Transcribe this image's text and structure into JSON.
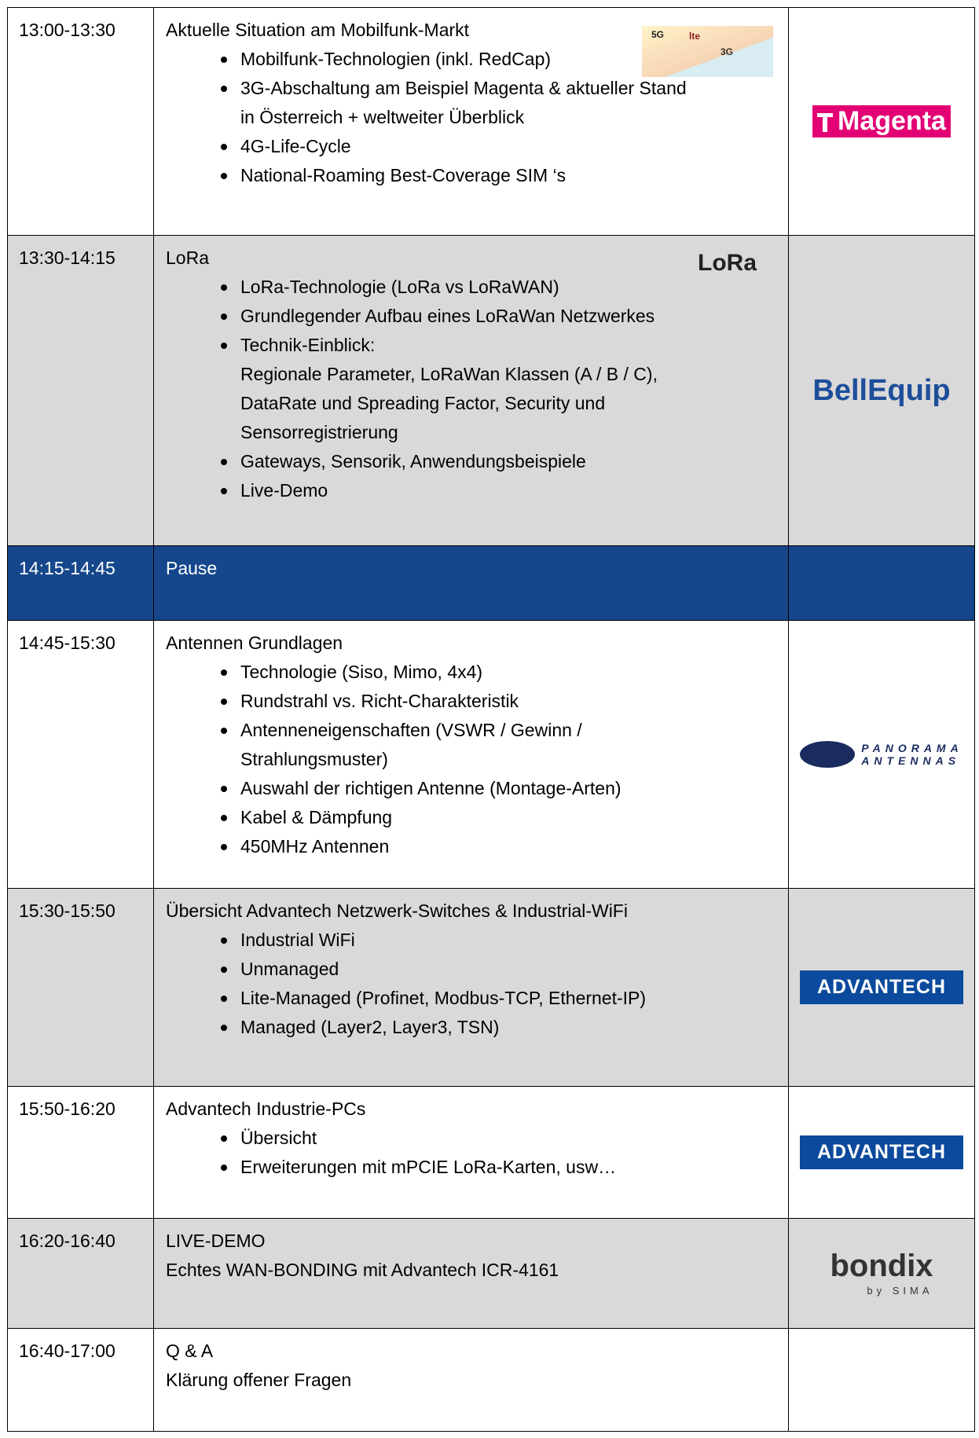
{
  "table": {
    "rows": [
      {
        "time": "13:00-13:30",
        "title": "Aktuelle Situation am Mobilfunk-Markt",
        "items": [
          [
            "Mobilfunk-Technologien (inkl. RedCap)"
          ],
          [
            "3G-Abschaltung am Beispiel Magenta & aktueller Stand",
            "in Österreich + weltweiter Überblick"
          ],
          [
            "4G-Life-Cycle"
          ],
          [
            "National-Roaming Best-Coverage SIM ‘s"
          ]
        ],
        "image": [
          "5G",
          "lte",
          "3G"
        ],
        "logo": [
          "Magenta"
        ]
      },
      {
        "time": "13:30-14:15",
        "title": "LoRa",
        "items": [
          [
            "LoRa-Technologie (LoRa vs LoRaWAN)"
          ],
          [
            "Grundlegender Aufbau eines LoRaWan Netzwerkes"
          ],
          [
            "Technik-Einblick:",
            "Regionale Parameter, LoRaWan Klassen (A / B / C),",
            "DataRate und Spreading Factor, Security und",
            "Sensorregistrierung"
          ],
          [
            "Gateways, Sensorik, Anwendungsbeispiele"
          ],
          [
            "Live-Demo"
          ]
        ],
        "badge": "LoRa",
        "logo": [
          "BellEquip"
        ]
      },
      {
        "time": "14:15-14:45",
        "title": "Pause"
      },
      {
        "time": "14:45-15:30",
        "title": "Antennen Grundlagen",
        "items": [
          [
            "Technologie (Siso, Mimo, 4x4)"
          ],
          [
            "Rundstrahl vs. Richt-Charakteristik"
          ],
          [
            "Antenneneigenschaften (VSWR / Gewinn /",
            "Strahlungsmuster)"
          ],
          [
            "Auswahl der richtigen Antenne (Montage-Arten)"
          ],
          [
            "Kabel & Dämpfung"
          ],
          [
            "450MHz Antennen"
          ]
        ],
        "logo": [
          "PANORAMA",
          "ANTENNAS"
        ]
      },
      {
        "time": "15:30-15:50",
        "title": "Übersicht Advantech Netzwerk-Switches & Industrial-WiFi",
        "items": [
          [
            "Industrial WiFi"
          ],
          [
            "Unmanaged"
          ],
          [
            "Lite-Managed (Profinet, Modbus-TCP, Ethernet-IP)"
          ],
          [
            "Managed (Layer2, Layer3, TSN)"
          ]
        ],
        "logo": [
          "ADVANTECH"
        ]
      },
      {
        "time": "15:50-16:20",
        "title": "Advantech Industrie-PCs",
        "items": [
          [
            "Übersicht"
          ],
          [
            "Erweiterungen mit mPCIE LoRa-Karten, usw…"
          ]
        ],
        "logo": [
          "ADVANTECH"
        ]
      },
      {
        "time": "16:20-16:40",
        "title": "LIVE-DEMO",
        "lines": [
          "Echtes WAN-BONDING mit Advantech ICR-4161"
        ],
        "logo": [
          "bondix",
          "by SIMA"
        ]
      },
      {
        "time": "16:40-17:00",
        "title": "Q & A",
        "lines": [
          "Klärung offener Fragen"
        ]
      }
    ]
  }
}
